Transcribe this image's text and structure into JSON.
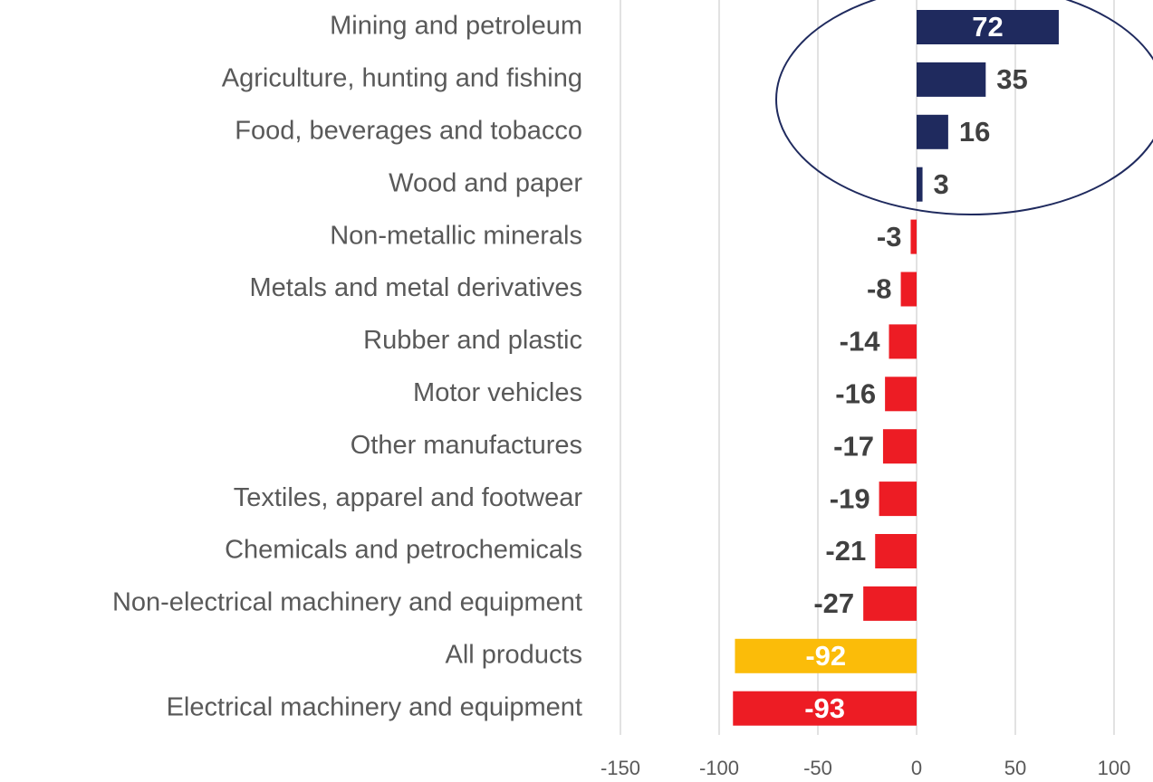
{
  "chart_data": {
    "type": "barh",
    "categories": [
      "Mining and petroleum",
      "Agriculture, hunting and fishing",
      "Food, beverages and tobacco",
      "Wood and paper",
      "Non-metallic minerals",
      "Metals and metal derivatives",
      "Rubber and plastic",
      "Motor vehicles",
      "Other manufactures",
      "Textiles, apparel and footwear",
      "Chemicals and petrochemicals",
      "Non-electrical machinery and equipment",
      "All products",
      "Electrical machinery and equipment"
    ],
    "values": [
      72,
      35,
      16,
      3,
      -3,
      -8,
      -14,
      -16,
      -17,
      -19,
      -21,
      -27,
      -92,
      -93
    ],
    "colors": [
      "#1f2a5e",
      "#1f2a5e",
      "#1f2a5e",
      "#1f2a5e",
      "#ed1c24",
      "#ed1c24",
      "#ed1c24",
      "#ed1c24",
      "#ed1c24",
      "#ed1c24",
      "#ed1c24",
      "#ed1c24",
      "#fbbc09",
      "#ed1c24"
    ],
    "xlim": [
      -150,
      100
    ],
    "xticks": [
      -150,
      -100,
      -50,
      0,
      50,
      100
    ],
    "grid": true
  }
}
